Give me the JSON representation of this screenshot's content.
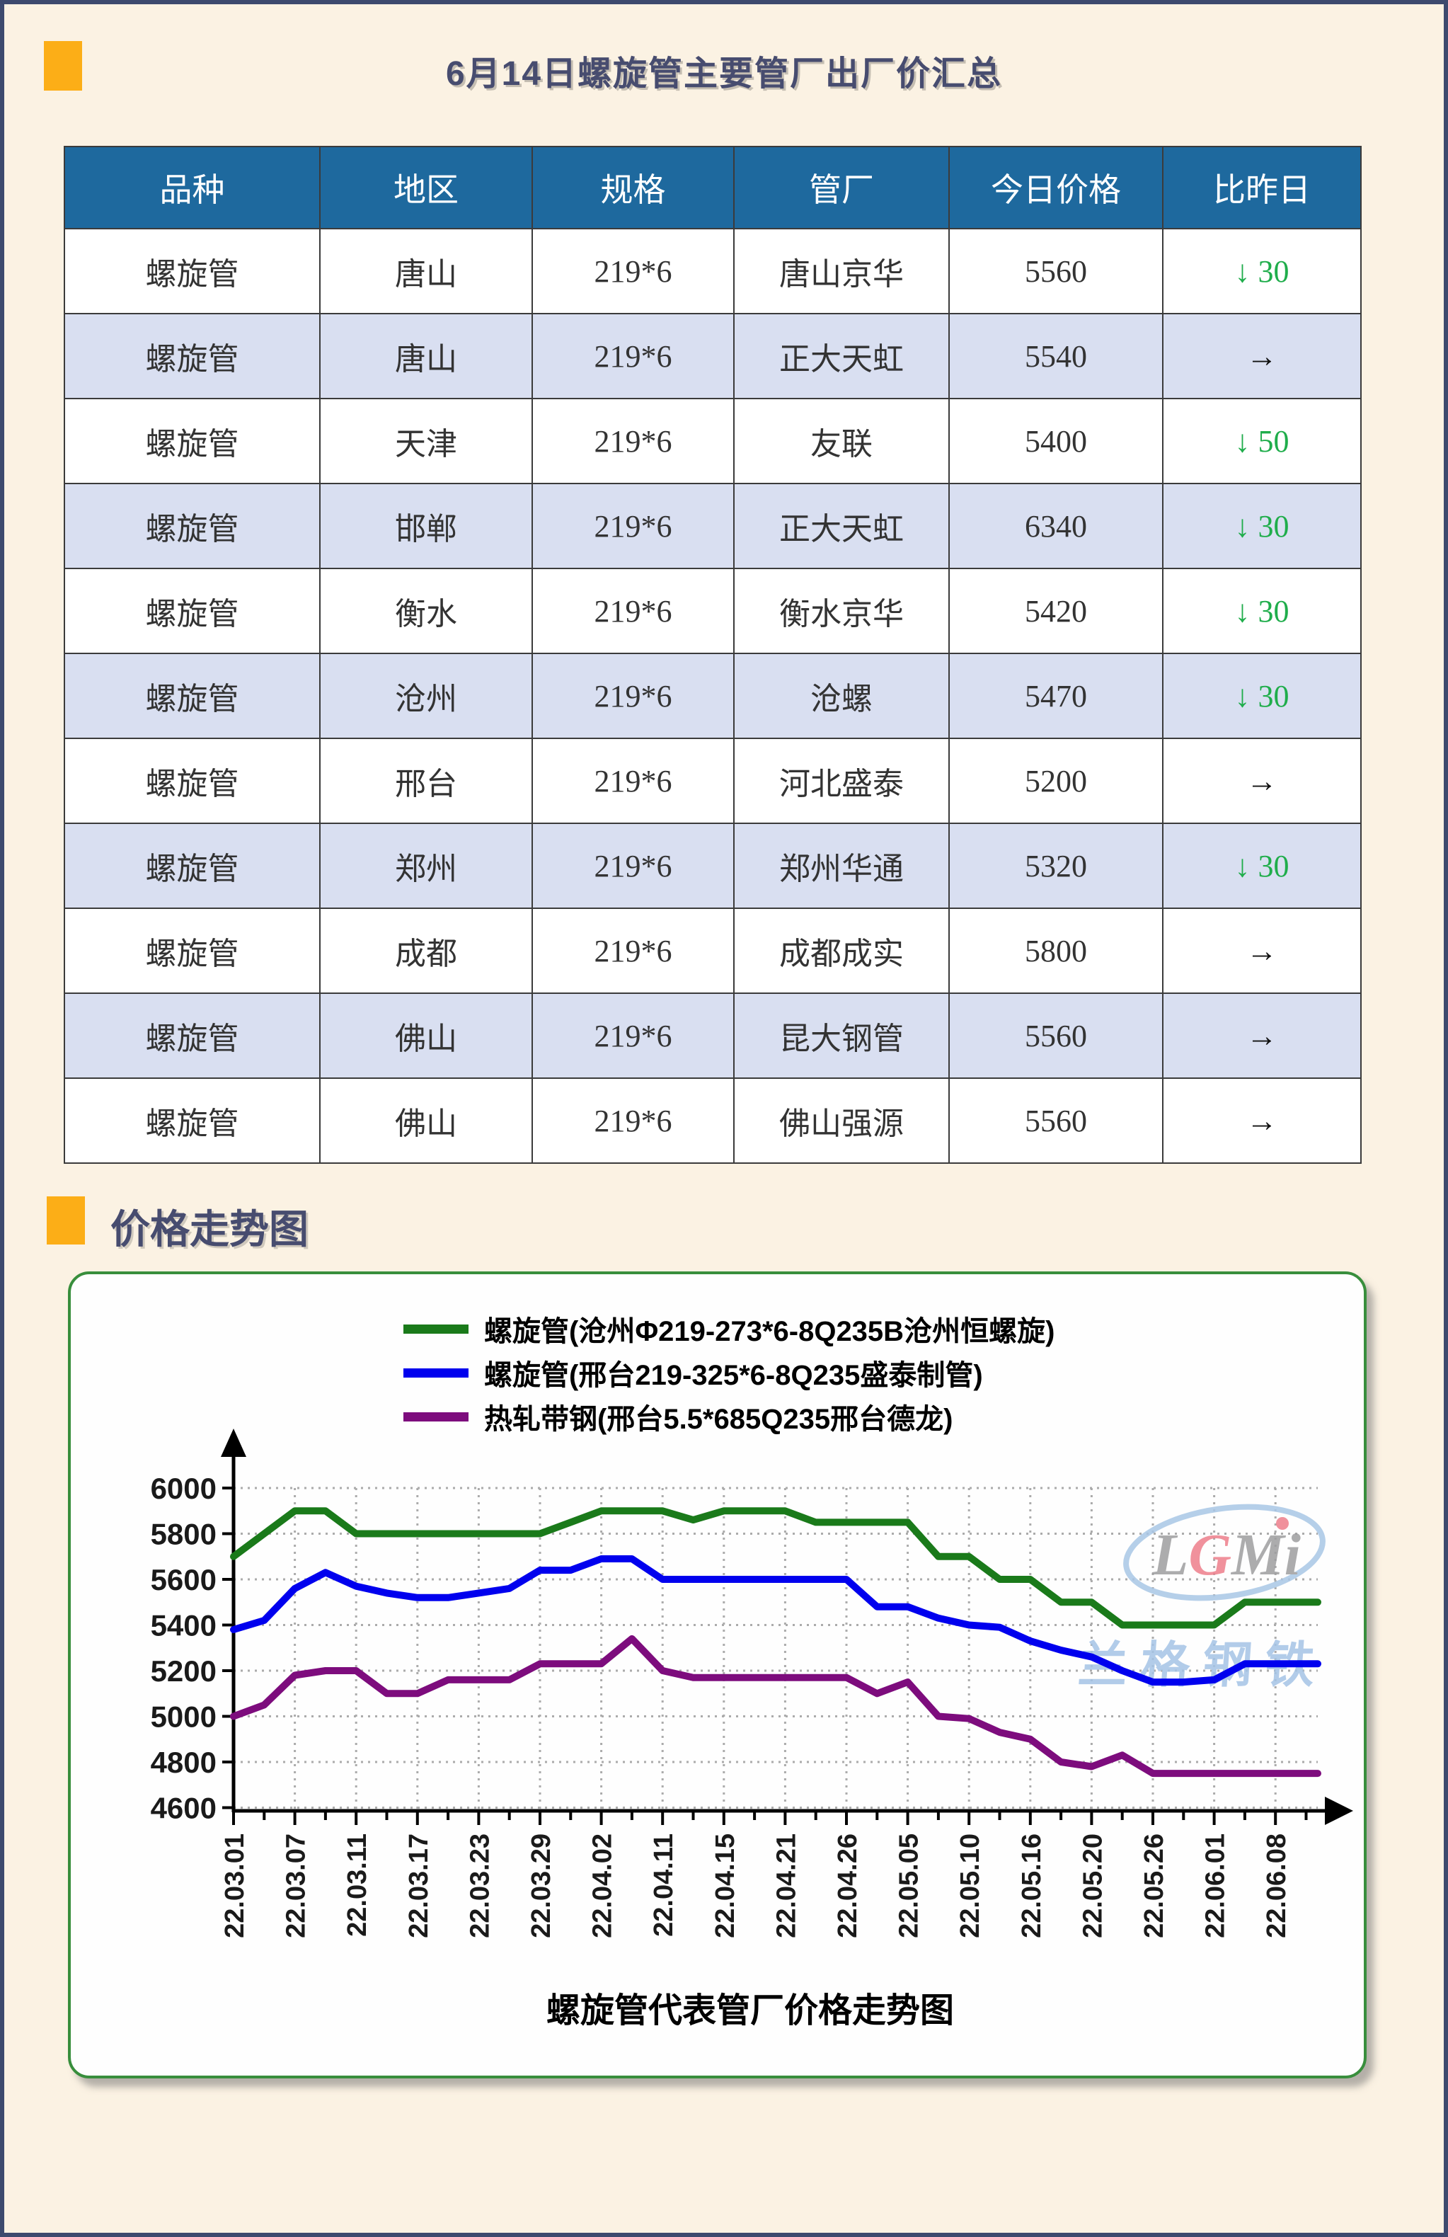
{
  "page": {
    "title": "6月14日螺旋管主要管厂出厂价汇总",
    "section2_title": "价格走势图"
  },
  "colors": {
    "page_bg": "#FBF2E3",
    "outer_border": "#3D4A6E",
    "accent_orange": "#FCAE17",
    "title_text": "#474C6F",
    "table_header_bg": "#1E699E",
    "table_row_alt": "#D9DFF1",
    "change_down_green": "#1FAD4B",
    "chart_border_green": "#388E3C"
  },
  "table": {
    "headers": [
      "品种",
      "地区",
      "规格",
      "管厂",
      "今日价格",
      "比昨日"
    ],
    "rows": [
      {
        "variety": "螺旋管",
        "region": "唐山",
        "spec": "219*6",
        "factory": "唐山京华",
        "price": "5560",
        "change_arrow": "↓",
        "change_amount": "30",
        "change_dir": "down"
      },
      {
        "variety": "螺旋管",
        "region": "唐山",
        "spec": "219*6",
        "factory": "正大天虹",
        "price": "5540",
        "change_arrow": "→",
        "change_amount": "",
        "change_dir": "flat"
      },
      {
        "variety": "螺旋管",
        "region": "天津",
        "spec": "219*6",
        "factory": "友联",
        "price": "5400",
        "change_arrow": "↓",
        "change_amount": "50",
        "change_dir": "down"
      },
      {
        "variety": "螺旋管",
        "region": "邯郸",
        "spec": "219*6",
        "factory": "正大天虹",
        "price": "6340",
        "change_arrow": "↓",
        "change_amount": "30",
        "change_dir": "down"
      },
      {
        "variety": "螺旋管",
        "region": "衡水",
        "spec": "219*6",
        "factory": "衡水京华",
        "price": "5420",
        "change_arrow": "↓",
        "change_amount": "30",
        "change_dir": "down"
      },
      {
        "variety": "螺旋管",
        "region": "沧州",
        "spec": "219*6",
        "factory": "沧螺",
        "price": "5470",
        "change_arrow": "↓",
        "change_amount": "30",
        "change_dir": "down"
      },
      {
        "variety": "螺旋管",
        "region": "邢台",
        "spec": "219*6",
        "factory": "河北盛泰",
        "price": "5200",
        "change_arrow": "→",
        "change_amount": "",
        "change_dir": "flat"
      },
      {
        "variety": "螺旋管",
        "region": "郑州",
        "spec": "219*6",
        "factory": "郑州华通",
        "price": "5320",
        "change_arrow": "↓",
        "change_amount": "30",
        "change_dir": "down"
      },
      {
        "variety": "螺旋管",
        "region": "成都",
        "spec": "219*6",
        "factory": "成都成实",
        "price": "5800",
        "change_arrow": "→",
        "change_amount": "",
        "change_dir": "flat"
      },
      {
        "variety": "螺旋管",
        "region": "佛山",
        "spec": "219*6",
        "factory": "昆大钢管",
        "price": "5560",
        "change_arrow": "→",
        "change_amount": "",
        "change_dir": "flat"
      },
      {
        "variety": "螺旋管",
        "region": "佛山",
        "spec": "219*6",
        "factory": "佛山强源",
        "price": "5560",
        "change_arrow": "→",
        "change_amount": "",
        "change_dir": "flat"
      }
    ]
  },
  "chart_data": {
    "type": "line",
    "title": "",
    "caption": "螺旋管代表管厂价格走势图",
    "xlabel": "",
    "ylabel": "",
    "ylim": [
      4600,
      6000
    ],
    "y_ticks": [
      "6000",
      "5800",
      "5600",
      "5400",
      "5200",
      "5000",
      "4800",
      "4600"
    ],
    "grid": "dotted",
    "legend_position": "top",
    "x": [
      "22.03.01",
      "22.03.07",
      "22.03.11",
      "22.03.17",
      "22.03.23",
      "22.03.29",
      "22.04.02",
      "22.04.11",
      "22.04.15",
      "22.04.21",
      "22.04.26",
      "22.05.05",
      "22.05.10",
      "22.05.16",
      "22.05.20",
      "22.05.26",
      "22.06.01",
      "22.06.08"
    ],
    "points_per_label_interval": 2,
    "series": [
      {
        "name": "螺旋管(沧州Φ219-273*6-8Q235B沧州恒螺旋)",
        "color": "#1A7A1A",
        "values": [
          5700,
          5800,
          5900,
          5900,
          5800,
          5800,
          5800,
          5800,
          5800,
          5800,
          5800,
          5850,
          5900,
          5900,
          5900,
          5860,
          5900,
          5900,
          5900,
          5850,
          5850,
          5850,
          5850,
          5700,
          5700,
          5600,
          5600,
          5500,
          5500,
          5400,
          5400,
          5400,
          5400,
          5500,
          5500
        ]
      },
      {
        "name": "螺旋管(邢台219-325*6-8Q235盛泰制管)",
        "color": "#0000EE",
        "values": [
          5380,
          5420,
          5560,
          5630,
          5570,
          5540,
          5520,
          5520,
          5540,
          5560,
          5640,
          5640,
          5690,
          5690,
          5600,
          5600,
          5600,
          5600,
          5600,
          5600,
          5600,
          5480,
          5480,
          5430,
          5400,
          5390,
          5330,
          5290,
          5260,
          5200,
          5150,
          5150,
          5160,
          5230,
          5230
        ]
      },
      {
        "name": "热轧带钢(邢台5.5*685Q235邢台德龙)",
        "color": "#7D0C7D",
        "values": [
          5000,
          5050,
          5180,
          5200,
          5200,
          5100,
          5100,
          5160,
          5160,
          5160,
          5230,
          5230,
          5230,
          5340,
          5200,
          5170,
          5170,
          5170,
          5170,
          5170,
          5170,
          5100,
          5150,
          5000,
          4990,
          4930,
          4900,
          4800,
          4780,
          4830,
          4750,
          4750,
          4750,
          4750,
          4750
        ]
      }
    ],
    "watermark": {
      "logo_text": "LGMi",
      "logo_sub_text": "兰格钢铁",
      "logo_color": "#9E9EA0",
      "logo_accent": "#EE7F8B",
      "ring_color": "#A9C7E6"
    }
  }
}
